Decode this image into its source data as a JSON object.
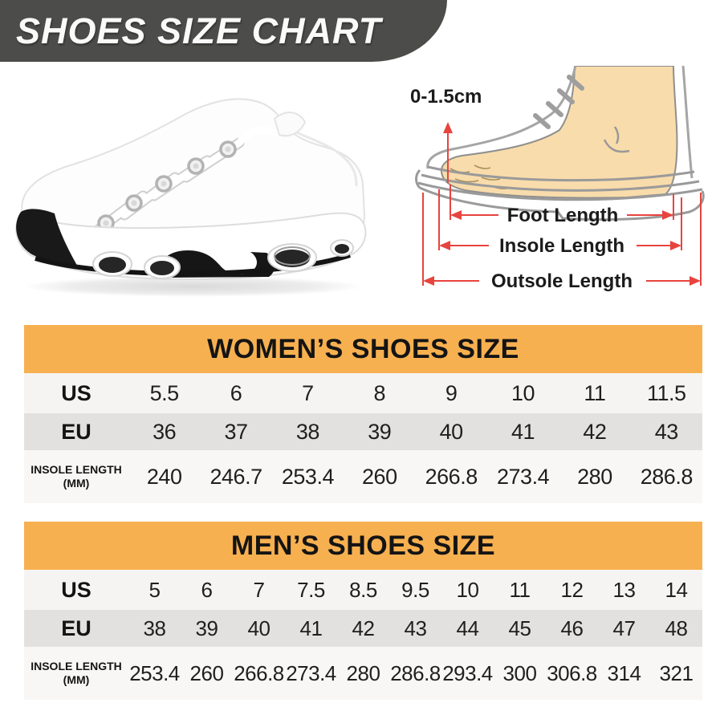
{
  "banner": {
    "title": "SHOES SIZE CHART"
  },
  "diagram": {
    "gap_label": "0-1.5cm",
    "labels": [
      "Foot Length",
      "Insole Length",
      "Outsole Length"
    ]
  },
  "tables": {
    "women": {
      "title": "WOMEN’S SHOES SIZE",
      "rows": [
        {
          "label": "US",
          "values": [
            "5.5",
            "6",
            "7",
            "8",
            "9",
            "10",
            "11",
            "11.5"
          ]
        },
        {
          "label": "EU",
          "values": [
            "36",
            "37",
            "38",
            "39",
            "40",
            "41",
            "42",
            "43"
          ]
        },
        {
          "label": "INSOLE LENGTH",
          "sublabel": "(MM)",
          "values": [
            "240",
            "246.7",
            "253.4",
            "260",
            "266.8",
            "273.4",
            "280",
            "286.8"
          ]
        }
      ]
    },
    "men": {
      "title": "MEN’S SHOES SIZE",
      "rows": [
        {
          "label": "US",
          "values": [
            "5",
            "6",
            "7",
            "7.5",
            "8.5",
            "9.5",
            "10",
            "11",
            "12",
            "13",
            "14"
          ]
        },
        {
          "label": "EU",
          "values": [
            "38",
            "39",
            "40",
            "41",
            "42",
            "43",
            "44",
            "45",
            "46",
            "47",
            "48"
          ]
        },
        {
          "label": "INSOLE LENGTH",
          "sublabel": "(MM)",
          "values": [
            "253.4",
            "260",
            "266.8",
            "273.4",
            "280",
            "286.8",
            "293.4",
            "300",
            "306.8",
            "314",
            "321"
          ]
        }
      ]
    }
  },
  "colors": {
    "banner_gray": "#4c4c4a",
    "accent_orange": "#f7b050",
    "arrow_red": "#e8443e",
    "skin": "#f8dcab",
    "row_light": "#f6f4f3",
    "row_gray": "#e3e1e0"
  }
}
